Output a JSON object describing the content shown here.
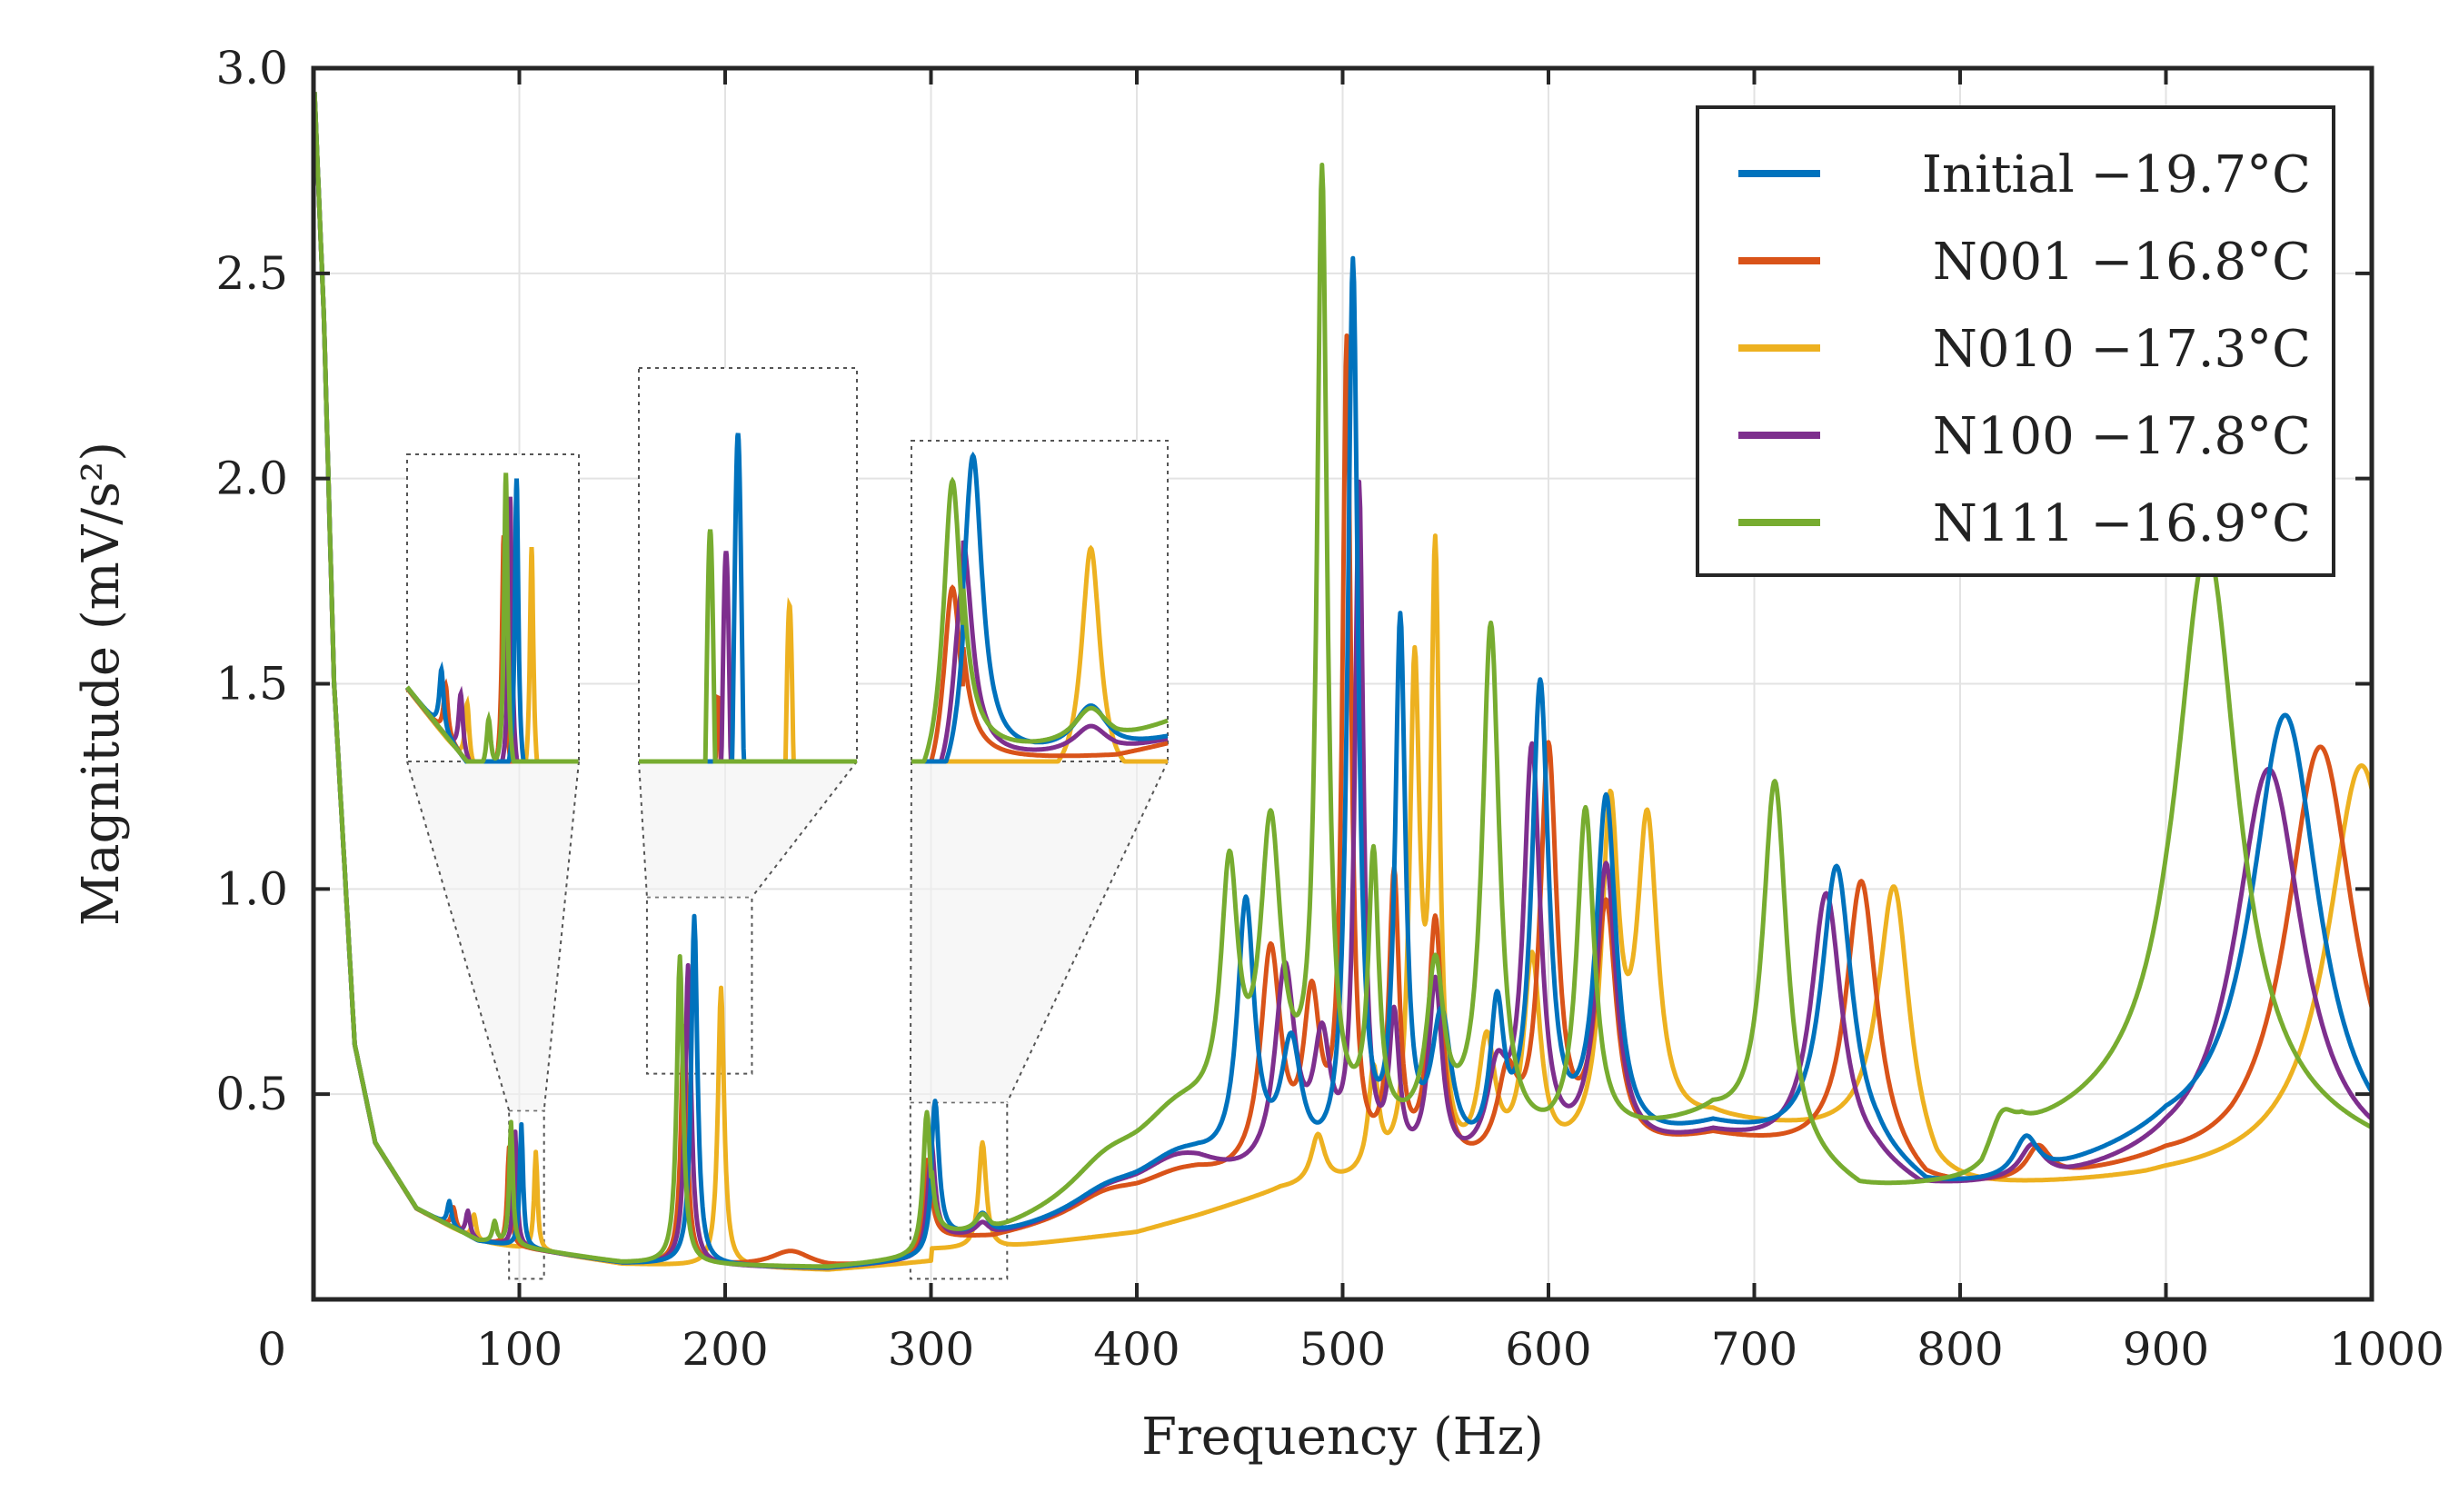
{
  "chart_data": {
    "type": "line",
    "title": "",
    "xlabel": "Frequency (Hz)",
    "ylabel": "Magnitude (mV/s²)",
    "xlim": [
      0,
      1000
    ],
    "ylim": [
      0,
      3.0
    ],
    "xticks": [
      0,
      100,
      200,
      300,
      400,
      500,
      600,
      700,
      800,
      900,
      1000
    ],
    "xtick_labels": [
      "0",
      "100",
      "200",
      "300",
      "400",
      "500",
      "600",
      "700",
      "800",
      "900",
      "1000"
    ],
    "yticks": [
      0.5,
      1.0,
      1.5,
      2.0,
      2.5,
      3.0
    ],
    "ytick_labels": [
      "0.5",
      "1.0",
      "1.5",
      "2.0",
      "2.5",
      "3.0"
    ],
    "grid": true,
    "legend_position": "top-right",
    "baseline": {
      "x": [
        0,
        5,
        10,
        20,
        30,
        50,
        80,
        150,
        250,
        300,
        400,
        1000
      ],
      "y": [
        3.0,
        2.4,
        1.5,
        0.62,
        0.38,
        0.22,
        0.14,
        0.085,
        0.07,
        0.09,
        0.16,
        0.3
      ]
    },
    "series": [
      {
        "name": "Initial −19.7°C",
        "color": "#0072BD",
        "peaks": [
          [
            66,
            0.06,
            1.2
          ],
          [
            101,
            0.3,
            1.0
          ],
          [
            185,
            0.85,
            1.8
          ],
          [
            302,
            0.33,
            2.2
          ],
          [
            325,
            0.05,
            4
          ],
          [
            385,
            0.05,
            22
          ],
          [
            420,
            0.1,
            26
          ],
          [
            453,
            0.65,
            5
          ],
          [
            475,
            0.3,
            6
          ],
          [
            505,
            2.2,
            3
          ],
          [
            528,
            1.3,
            3
          ],
          [
            548,
            0.35,
            6
          ],
          [
            575,
            0.35,
            4
          ],
          [
            596,
            1.15,
            5
          ],
          [
            628,
            0.85,
            6
          ],
          [
            740,
            0.7,
            9
          ],
          [
            832,
            0.1,
            7
          ],
          [
            958,
            1.1,
            20
          ]
        ],
        "bg": [
          [
            330,
            0.14
          ],
          [
            400,
            0.2
          ],
          [
            430,
            0.24
          ],
          [
            470,
            0.26
          ],
          [
            600,
            0.3
          ],
          [
            680,
            0.4
          ],
          [
            760,
            0.32
          ],
          [
            800,
            0.2
          ],
          [
            830,
            0.26
          ],
          [
            900,
            0.35
          ],
          [
            1000,
            0.3
          ]
        ]
      },
      {
        "name": "N001 −16.8°C",
        "color": "#D95319",
        "peaks": [
          [
            68,
            0.05,
            1.2
          ],
          [
            95,
            0.24,
            1.0
          ],
          [
            180,
            0.58,
            1.8
          ],
          [
            232,
            0.04,
            12
          ],
          [
            298,
            0.24,
            2.2
          ],
          [
            385,
            0.05,
            22
          ],
          [
            420,
            0.06,
            26
          ],
          [
            465,
            0.55,
            6
          ],
          [
            485,
            0.4,
            5
          ],
          [
            502,
            2.0,
            2.5
          ],
          [
            525,
            0.7,
            3
          ],
          [
            545,
            0.6,
            4
          ],
          [
            580,
            0.2,
            6
          ],
          [
            600,
            1.0,
            5
          ],
          [
            628,
            0.6,
            6
          ],
          [
            752,
            0.68,
            9
          ],
          [
            838,
            0.08,
            7
          ],
          [
            975,
            1.05,
            20
          ]
        ],
        "bg": [
          [
            330,
            0.14
          ],
          [
            400,
            0.2
          ],
          [
            430,
            0.24
          ],
          [
            470,
            0.26
          ],
          [
            600,
            0.3
          ],
          [
            680,
            0.38
          ],
          [
            760,
            0.32
          ],
          [
            800,
            0.2
          ],
          [
            830,
            0.26
          ],
          [
            900,
            0.3
          ],
          [
            1000,
            0.25
          ]
        ]
      },
      {
        "name": "N010 −17.3°C",
        "color": "#EDB120",
        "peaks": [
          [
            78,
            0.06,
            1.2
          ],
          [
            108,
            0.24,
            1.0
          ],
          [
            198,
            0.68,
            1.8
          ],
          [
            325,
            0.26,
            2.2
          ],
          [
            488,
            0.12,
            4
          ],
          [
            515,
            0.25,
            3
          ],
          [
            535,
            1.2,
            3
          ],
          [
            545,
            1.45,
            2.5
          ],
          [
            570,
            0.3,
            5
          ],
          [
            592,
            0.5,
            5
          ],
          [
            630,
            0.8,
            5
          ],
          [
            648,
            0.75,
            6
          ],
          [
            768,
            0.65,
            9
          ],
          [
            995,
            1.0,
            20
          ]
        ],
        "bg": [
          [
            330,
            0.12
          ],
          [
            400,
            0.16
          ],
          [
            430,
            0.2
          ],
          [
            470,
            0.26
          ],
          [
            600,
            0.3
          ],
          [
            680,
            0.42
          ],
          [
            760,
            0.38
          ],
          [
            800,
            0.2
          ],
          [
            830,
            0.24
          ],
          [
            900,
            0.28
          ],
          [
            1000,
            0.3
          ]
        ]
      },
      {
        "name": "N100 −17.8°C",
        "color": "#7E2F8E",
        "peaks": [
          [
            75,
            0.06,
            1.2
          ],
          [
            98,
            0.28,
            1.0
          ],
          [
            182,
            0.73,
            1.8
          ],
          [
            300,
            0.24,
            2.2
          ],
          [
            325,
            0.03,
            4
          ],
          [
            385,
            0.05,
            22
          ],
          [
            420,
            0.1,
            26
          ],
          [
            472,
            0.5,
            6
          ],
          [
            490,
            0.3,
            5
          ],
          [
            508,
            1.65,
            2.5
          ],
          [
            525,
            0.35,
            3
          ],
          [
            545,
            0.45,
            4
          ],
          [
            575,
            0.2,
            6
          ],
          [
            592,
            1.0,
            5
          ],
          [
            628,
            0.7,
            6
          ],
          [
            735,
            0.65,
            9
          ],
          [
            835,
            0.08,
            7
          ],
          [
            950,
            1.0,
            20
          ]
        ],
        "bg": [
          [
            330,
            0.14
          ],
          [
            400,
            0.2
          ],
          [
            430,
            0.24
          ],
          [
            470,
            0.26
          ],
          [
            600,
            0.3
          ],
          [
            680,
            0.38
          ],
          [
            760,
            0.3
          ],
          [
            800,
            0.2
          ],
          [
            830,
            0.25
          ],
          [
            900,
            0.3
          ],
          [
            1000,
            0.28
          ]
        ]
      },
      {
        "name": "N111 −16.9°C",
        "color": "#77AC30",
        "peaks": [
          [
            88,
            0.05,
            1.2
          ],
          [
            96,
            0.3,
            1.0
          ],
          [
            178,
            0.75,
            1.8
          ],
          [
            298,
            0.35,
            2.2
          ],
          [
            325,
            0.04,
            4
          ],
          [
            385,
            0.08,
            22
          ],
          [
            420,
            0.15,
            26
          ],
          [
            445,
            0.6,
            5
          ],
          [
            465,
            0.7,
            6
          ],
          [
            490,
            2.3,
            3
          ],
          [
            515,
            0.65,
            3
          ],
          [
            545,
            0.4,
            5
          ],
          [
            572,
            1.25,
            5
          ],
          [
            618,
            0.8,
            5
          ],
          [
            710,
            0.9,
            7
          ],
          [
            820,
            0.1,
            8
          ],
          [
            920,
            1.4,
            18
          ]
        ],
        "bg": [
          [
            330,
            0.14
          ],
          [
            400,
            0.24
          ],
          [
            430,
            0.3
          ],
          [
            470,
            0.38
          ],
          [
            600,
            0.35
          ],
          [
            680,
            0.42
          ],
          [
            760,
            0.22
          ],
          [
            800,
            0.2
          ],
          [
            830,
            0.36
          ],
          [
            900,
            0.45
          ],
          [
            1000,
            0.35
          ]
        ]
      }
    ],
    "insets": [
      {
        "range": [
          50,
          130
        ],
        "y_range": [
          0.15,
          0.45
        ]
      },
      {
        "range": [
          160,
          215
        ],
        "y_range": [
          0.6,
          1.0
        ]
      },
      {
        "range": [
          290,
          340
        ],
        "y_range": [
          0.15,
          0.5
        ]
      }
    ]
  }
}
